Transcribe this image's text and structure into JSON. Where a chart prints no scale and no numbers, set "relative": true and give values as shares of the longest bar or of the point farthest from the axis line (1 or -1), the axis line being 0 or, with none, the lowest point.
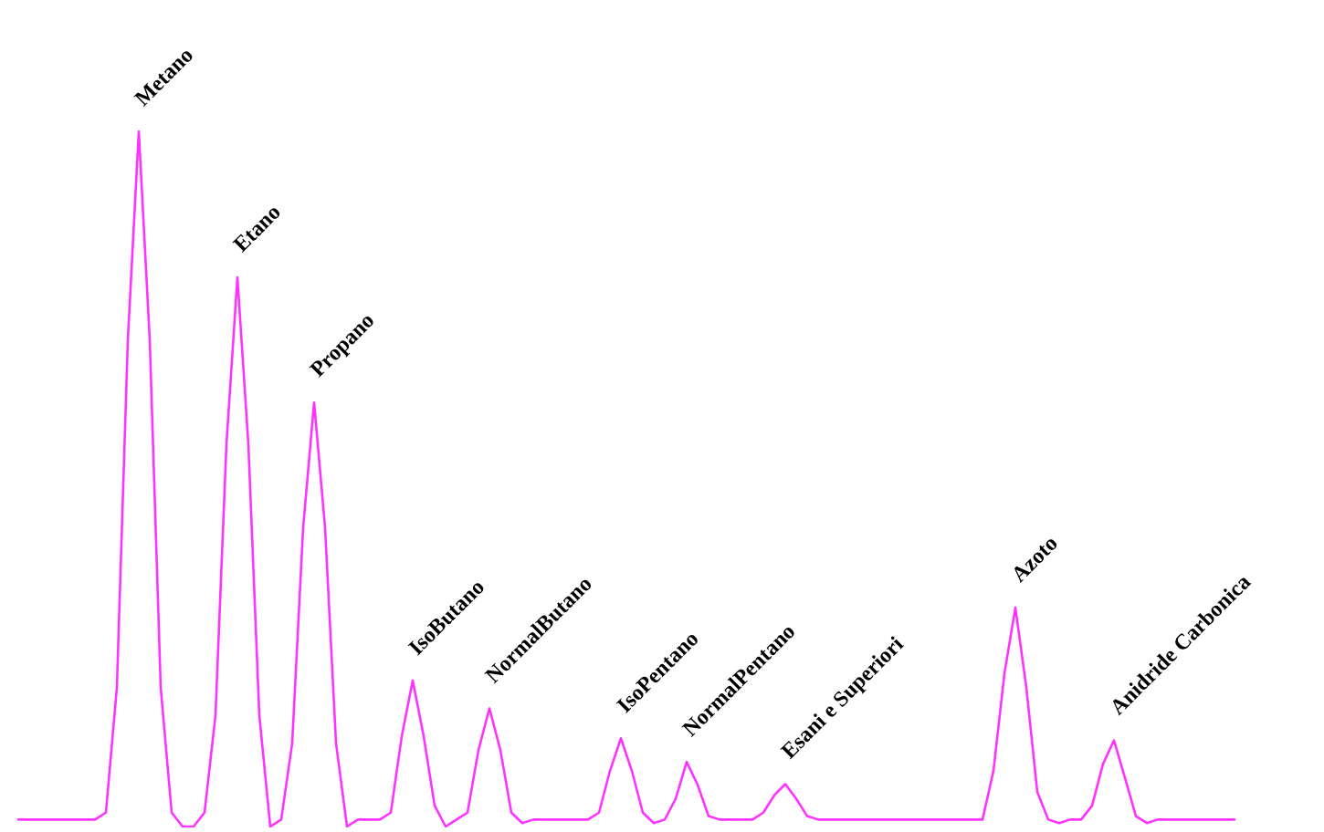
{
  "chart_data": {
    "type": "line",
    "relative": true,
    "categories": [
      null,
      null,
      null,
      null,
      null,
      null,
      null,
      null,
      null,
      null,
      null,
      null,
      null,
      null,
      null,
      null,
      null,
      null,
      null,
      null,
      null,
      null,
      null,
      null,
      null,
      null,
      null,
      null,
      null,
      null,
      null,
      null,
      null,
      null,
      null,
      null,
      null,
      null,
      null,
      null,
      null,
      null,
      null,
      null,
      null,
      null,
      null,
      null,
      null,
      null,
      null,
      null,
      null,
      null,
      null,
      null,
      null,
      null,
      null,
      null,
      null,
      null,
      null,
      null,
      null,
      null,
      null,
      null,
      null,
      null,
      null,
      null,
      null,
      null,
      null,
      null,
      null,
      null,
      null,
      null,
      null,
      null,
      null,
      null,
      null,
      null,
      null,
      null,
      null,
      null,
      null,
      null,
      null,
      null,
      null,
      null,
      null,
      null,
      null,
      null,
      null,
      null,
      null,
      null,
      null,
      null,
      null,
      null,
      null,
      null,
      null,
      null
    ],
    "series": [
      {
        "color": "#ff33ff",
        "values": [
          0.01,
          0.01,
          0.01,
          0.01,
          0.01,
          0.01,
          0.01,
          0.01,
          0.02,
          0.2,
          0.7,
          1,
          0.7,
          0.2,
          0.02,
          0,
          0,
          0.02,
          0.16,
          0.55,
          0.79,
          0.55,
          0.16,
          0,
          0.01,
          0.12,
          0.43,
          0.61,
          0.43,
          0.12,
          0,
          0.01,
          0.01,
          0.01,
          0.02,
          0.13,
          0.21,
          0.13,
          0.03,
          0,
          0.01,
          0.02,
          0.11,
          0.17,
          0.11,
          0.02,
          0.005,
          0.01,
          0.01,
          0.01,
          0.01,
          0.01,
          0.01,
          0.02,
          0.08,
          0.127,
          0.08,
          0.02,
          0.005,
          0.01,
          0.04,
          0.093,
          0.06,
          0.015,
          0.01,
          0.01,
          0.01,
          0.01,
          0.02,
          0.045,
          0.061,
          0.04,
          0.015,
          0.01,
          0.01,
          0.01,
          0.01,
          0.01,
          0.01,
          0.01,
          0.01,
          0.01,
          0.01,
          0.01,
          0.01,
          0.01,
          0.01,
          0.01,
          0.01,
          0.08,
          0.22,
          0.315,
          0.2,
          0.05,
          0.01,
          0.005,
          0.01,
          0.01,
          0.03,
          0.09,
          0.124,
          0.07,
          0.015,
          0.005,
          0.01,
          0.01,
          0.01,
          0.01,
          0.01,
          0.01,
          0.01,
          0.01
        ]
      }
    ],
    "annotations": [
      "Metano",
      "Etano",
      "Propano",
      "IsoButano",
      "NormalButano",
      "IsoPentano",
      "NormalPentano",
      "Esani e Superiori",
      "Azoto",
      "Anidride Carbonica"
    ]
  }
}
